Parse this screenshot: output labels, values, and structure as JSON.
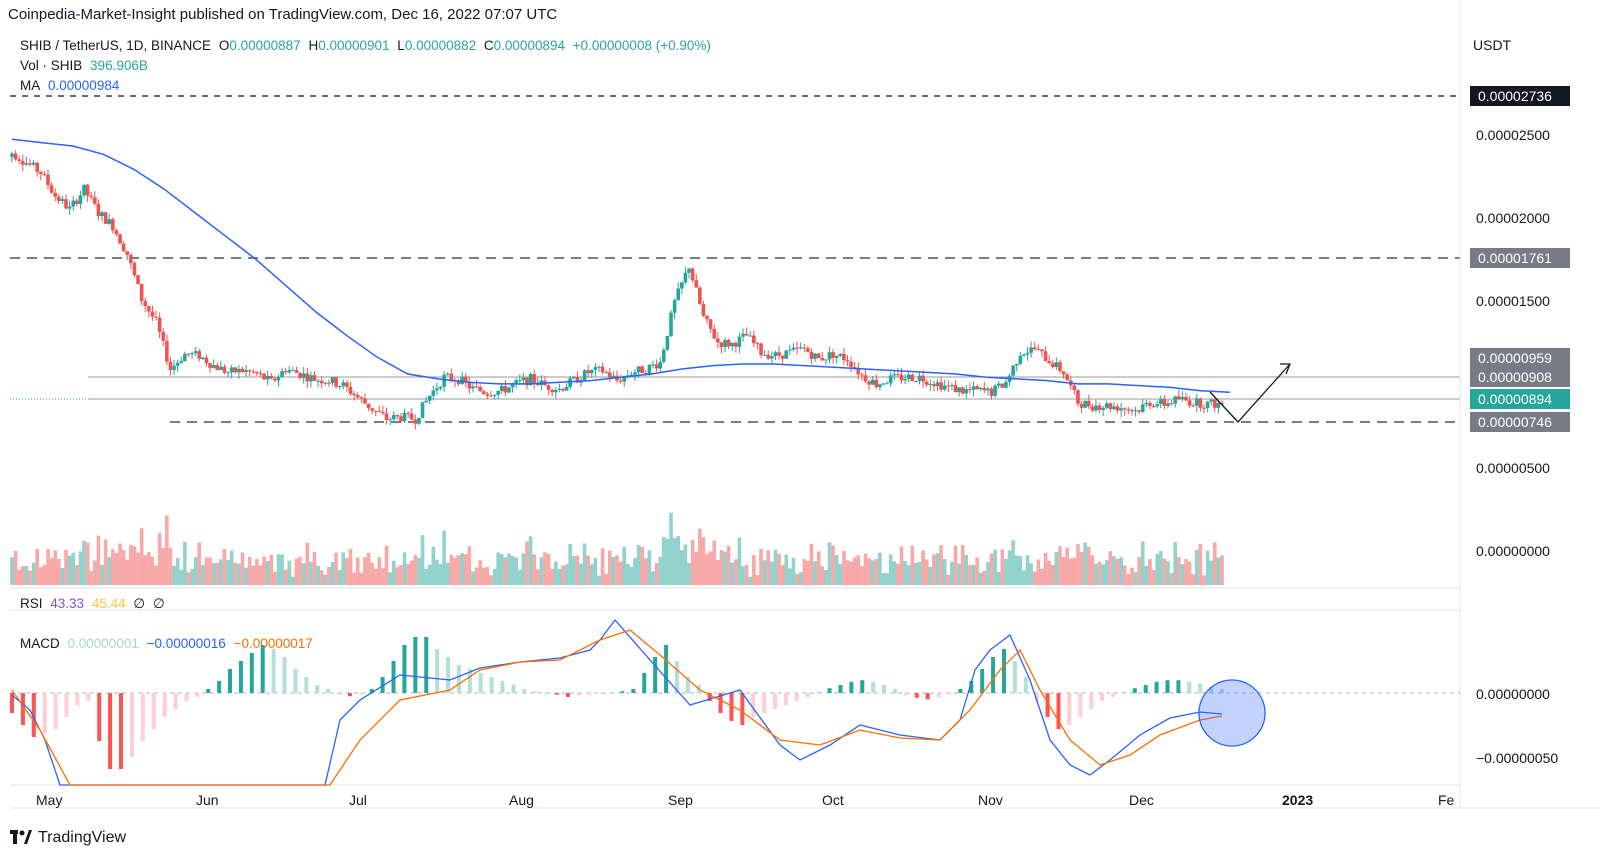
{
  "header": {
    "publisher": "Coinpedia-Market-Insight published on TradingView.com, Dec 16, 2022 07:07 UTC"
  },
  "legend": {
    "symbol": "SHIB / TetherUS, 1D, BINANCE",
    "o_label": "O",
    "o_value": "0.00000887",
    "h_label": "H",
    "h_value": "0.00000901",
    "l_label": "L",
    "l_value": "0.00000882",
    "c_label": "C",
    "c_value": "0.00000894",
    "change": "+0.00000008 (+0.90%)",
    "vol_label": "Vol · SHIB",
    "vol_value": "396.906B",
    "ma_label": "MA",
    "ma_value": "0.00000984"
  },
  "rsi_legend": {
    "label": "RSI",
    "value1": "43.33",
    "value2": "45.44",
    "empty1": "∅",
    "empty2": "∅"
  },
  "macd_legend": {
    "label": "MACD",
    "hist": "0.00000001",
    "macd": "−0.00000016",
    "signal": "−0.00000017"
  },
  "currency": "USDT",
  "footer": {
    "brand": "TradingView"
  },
  "colors": {
    "up": "#26a69a",
    "down": "#ef5350",
    "ma": "#2962ff",
    "signal": "#ff6d00",
    "tag_dark": "#131722",
    "tag_gray": "#787b86",
    "tag_green": "#26a69a"
  },
  "chart_data": {
    "type": "candlestick",
    "price_axis": {
      "ticks": [
        "0.00002500",
        "0.00002000",
        "0.00001500",
        "0.00000500",
        "0.00000000"
      ],
      "tick_values": [
        2.5e-05,
        2e-05,
        1.5e-05,
        5e-06,
        0.0
      ]
    },
    "price_tags": [
      {
        "label": "0.00002736",
        "value": 2.736e-05,
        "style": "dark",
        "line": "dashed"
      },
      {
        "label": "0.00001761",
        "value": 1.761e-05,
        "style": "gray",
        "line": "dashed"
      },
      {
        "label": "0.00000959",
        "value": 9.59e-06,
        "style": "gray",
        "line": "none"
      },
      {
        "label": "0.00000908",
        "value": 9.08e-06,
        "style": "gray",
        "line": "solid"
      },
      {
        "label": "0.00000894",
        "value": 8.94e-06,
        "style": "green",
        "line": "solid"
      },
      {
        "label": "0.00000746",
        "value": 7.46e-06,
        "style": "gray",
        "line": "dashed"
      }
    ],
    "months": [
      "May",
      "Jun",
      "Jul",
      "Aug",
      "Sep",
      "Oct",
      "Nov",
      "Dec",
      "2023",
      "Fe"
    ],
    "close_series": [
      2.4e-05,
      2.34e-05,
      2.28e-05,
      2.14e-05,
      2.06e-05,
      2.18e-05,
      2.04e-05,
      1.96e-05,
      1.79e-05,
      1.52e-05,
      1.38e-05,
      1.1e-05,
      1.19e-05,
      1.18e-05,
      1.12e-05,
      1.08e-05,
      1.09e-05,
      1.07e-05,
      1.02e-05,
      1.1e-05,
      1.07e-05,
      1.04e-05,
      1.03e-05,
      1e-05,
      9.3e-06,
      8.6e-06,
      8e-06,
      8.1e-06,
      8e-06,
      9.4e-06,
      1.05e-05,
      1.04e-05,
      9.8e-06,
      9.6e-06,
      9.7e-06,
      1.01e-05,
      1.04e-05,
      1e-05,
      9.8e-06,
      1.03e-05,
      1.08e-05,
      1.09e-05,
      1.03e-05,
      1.08e-05,
      1.1e-05,
      1.14e-05,
      1.5e-05,
      1.72e-05,
      1.41e-05,
      1.26e-05,
      1.25e-05,
      1.3e-05,
      1.2e-05,
      1.18e-05,
      1.2e-05,
      1.22e-05,
      1.16e-05,
      1.19e-05,
      1.16e-05,
      1.06e-05,
      1.01e-05,
      1.04e-05,
      1.05e-05,
      1.05e-05,
      1.02e-05,
      9.9e-06,
      9.7e-06,
      9.7e-06,
      9.6e-06,
      1.02e-05,
      1.2e-05,
      1.22e-05,
      1.15e-05,
      1.08e-05,
      9e-06,
      8.8e-06,
      8.8e-06,
      8.7e-06,
      8.5e-06,
      9e-06,
      8.9e-06,
      9.2e-06,
      9e-06,
      8.9e-06,
      8.9e-06
    ],
    "ma_series": [
      2.48e-05,
      2.46e-05,
      2.44e-05,
      2.39e-05,
      2.3e-05,
      2.18e-05,
      2.04e-05,
      1.9e-05,
      1.76e-05,
      1.6e-05,
      1.44e-05,
      1.3e-05,
      1.17e-05,
      1.07e-05,
      1.04e-05,
      1.02e-05,
      1.01e-05,
      1.01e-05,
      1.02e-05,
      1.03e-05,
      1.05e-05,
      1.07e-05,
      1.1e-05,
      1.12e-05,
      1.13e-05,
      1.13e-05,
      1.12e-05,
      1.11e-05,
      1.1e-05,
      1.09e-05,
      1.08e-05,
      1.07e-05,
      1.05e-05,
      1.04e-05,
      1.03e-05,
      1.01e-05,
      1.01e-05,
      1e-05,
      9.9e-06,
      9.7e-06,
      9.6e-06
    ],
    "rsi": {
      "value": 43.33,
      "signal": 45.44
    },
    "macd": {
      "histogram": 1e-08,
      "macd": -1.6e-07,
      "signal": -1.7e-07,
      "axis_ticks": [
        "0.00000000",
        "−0.00000050"
      ]
    }
  }
}
